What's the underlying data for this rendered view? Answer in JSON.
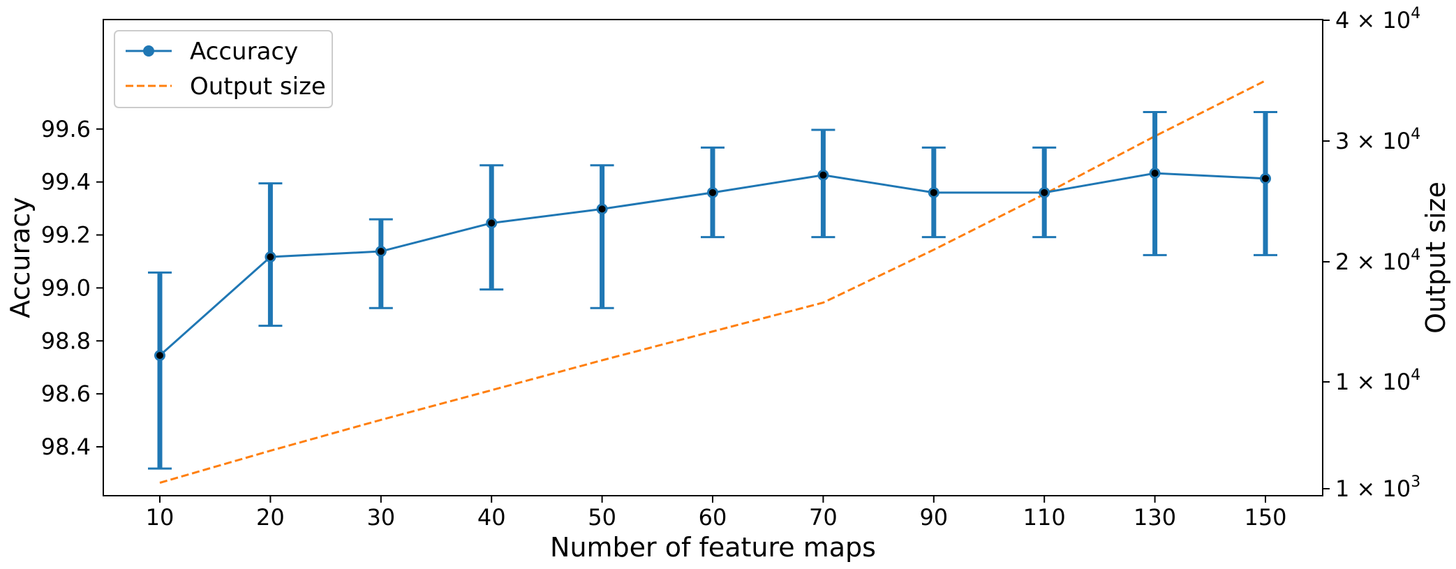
{
  "chart_data": {
    "type": "line",
    "title": "",
    "xlabel": "Number of feature maps",
    "ylabel": "Accuracy",
    "y2label": "Output size",
    "categories": [
      "10",
      "20",
      "30",
      "40",
      "50",
      "60",
      "70",
      "90",
      "110",
      "130",
      "150"
    ],
    "ylim": [
      98.25,
      99.74
    ],
    "yticks": [
      "98.4",
      "98.6",
      "98.8",
      "99.0",
      "99.2",
      "99.4",
      "99.6"
    ],
    "y2ticks": [
      {
        "base": "1",
        "exp": "3"
      },
      {
        "base": "1",
        "exp": "4"
      },
      {
        "base": "2",
        "exp": "4"
      },
      {
        "base": "3",
        "exp": "4"
      },
      {
        "base": "4",
        "exp": "4"
      }
    ],
    "legend_position": "upper-left",
    "grid": false,
    "series": [
      {
        "name": "Accuracy",
        "axis": "left",
        "style": "solid-line-with-markers-and-error-bars",
        "color": "#1f77b4",
        "values": [
          98.745,
          99.117,
          99.138,
          99.245,
          99.298,
          99.36,
          99.426,
          99.36,
          99.36,
          99.433,
          99.413
        ],
        "error_low": [
          98.318,
          98.857,
          98.924,
          98.994,
          98.924,
          99.192,
          99.192,
          99.192,
          99.192,
          99.124,
          99.124
        ],
        "error_high": [
          99.058,
          99.395,
          99.259,
          99.463,
          99.463,
          99.53,
          99.597,
          99.53,
          99.53,
          99.664,
          99.664
        ]
      },
      {
        "name": "Output size",
        "axis": "right",
        "style": "dashed-line",
        "color": "#ff7f0e",
        "values": [
          1500,
          4200,
          6800,
          9300,
          11800,
          14200,
          16600,
          21000,
          25600,
          30400,
          35000
        ]
      }
    ]
  }
}
